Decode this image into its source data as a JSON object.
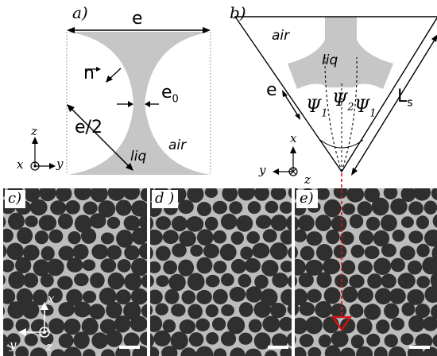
{
  "panel_a": {
    "label": "a)",
    "width_symbol": "e",
    "normal_symbol": "n",
    "neck_symbol": "e",
    "neck_subscript": "0",
    "radius_label": "e/2",
    "liquid_label": "liq",
    "air_label": "air",
    "axis_x": "x",
    "axis_y": "y",
    "axis_z": "z"
  },
  "panel_b": {
    "label": "b)",
    "air_label": "air",
    "liquid_label": "liq",
    "edge_symbol": "e",
    "length_symbol": "L",
    "length_subscript": "s",
    "psi_symbol": "Ψ",
    "psi1_subscript": "1",
    "psi2_subscript": "2",
    "psi3_subscript": "1",
    "axis_x": "x",
    "axis_y": "y",
    "axis_z": "z"
  },
  "photos": {
    "c_label": "c)",
    "d_label": "d )",
    "e_label": "e)",
    "c_axis_x": "x",
    "c_axis_y": "y",
    "c_axis_z": "z"
  },
  "colors": {
    "liquid": "#c6c6c6",
    "foam_background": "#bdbdbd",
    "bubble": "#2f2f2f",
    "marker": "#e01010"
  }
}
